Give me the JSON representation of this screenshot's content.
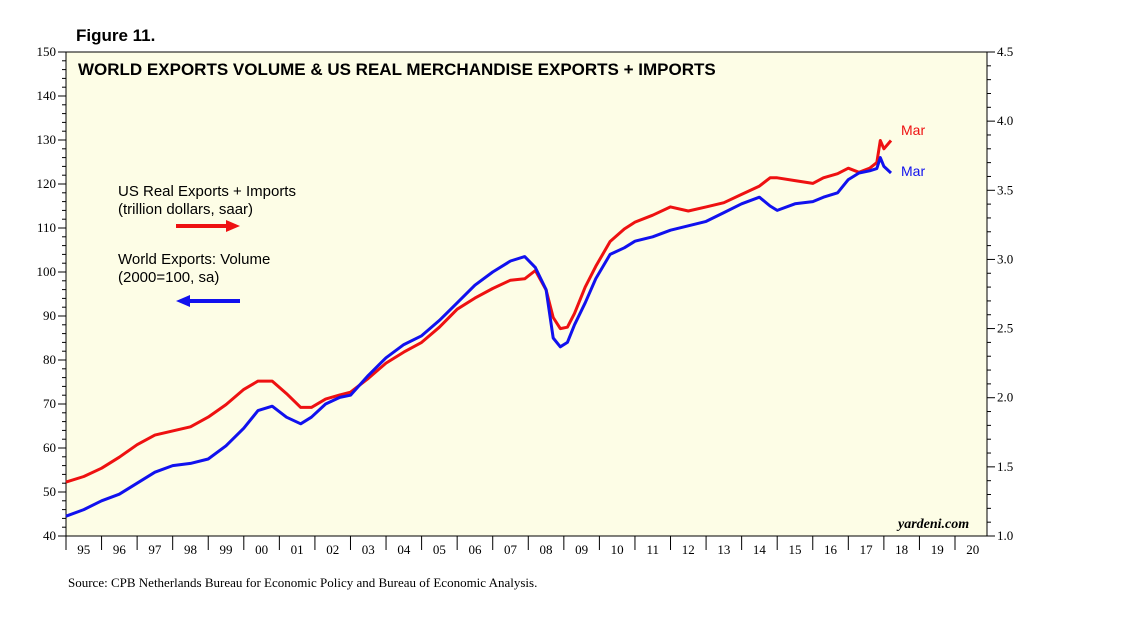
{
  "figure_label": "Figure 11.",
  "source": "Source: CPB Netherlands Bureau for Economic Policy and Bureau of Economic Analysis.",
  "brand": "yardeni.com",
  "colors": {
    "us": "#ee1111",
    "world": "#1111ee",
    "plot_bg": "#fdfde6"
  },
  "chart_data": {
    "type": "line",
    "title": "WORLD EXPORTS VOLUME & US REAL MERCHANDISE EXPORTS + IMPORTS",
    "xlim": [
      1995.0,
      2020.9
    ],
    "x_ticks": [
      "95",
      "96",
      "97",
      "98",
      "99",
      "00",
      "01",
      "02",
      "03",
      "04",
      "05",
      "06",
      "07",
      "08",
      "09",
      "10",
      "11",
      "12",
      "13",
      "14",
      "15",
      "16",
      "17",
      "18",
      "19",
      "20"
    ],
    "y_left": {
      "range": [
        40,
        150
      ],
      "ticks": [
        40,
        50,
        60,
        70,
        80,
        90,
        100,
        110,
        120,
        130,
        140,
        150
      ]
    },
    "y_right": {
      "range": [
        1.0,
        4.5
      ],
      "ticks": [
        "1.0",
        "1.5",
        "2.0",
        "2.5",
        "3.0",
        "3.5",
        "4.0",
        "4.5"
      ]
    },
    "series": [
      {
        "name": "US Real Exports + Imports",
        "legend_line1": "US Real Exports + Imports",
        "legend_line2": "(trillion dollars, saar)",
        "axis": "right",
        "end_label": "Mar",
        "x": [
          1995.0,
          1995.5,
          1996.0,
          1996.5,
          1997.0,
          1997.5,
          1998.0,
          1998.5,
          1999.0,
          1999.5,
          2000.0,
          2000.4,
          2000.8,
          2001.2,
          2001.6,
          2001.9,
          2002.3,
          2002.7,
          2003.0,
          2003.5,
          2004.0,
          2004.5,
          2005.0,
          2005.5,
          2006.0,
          2006.5,
          2007.0,
          2007.5,
          2007.9,
          2008.2,
          2008.5,
          2008.7,
          2008.9,
          2009.1,
          2009.3,
          2009.6,
          2009.9,
          2010.3,
          2010.7,
          2011.0,
          2011.5,
          2012.0,
          2012.5,
          2013.0,
          2013.5,
          2014.0,
          2014.5,
          2014.8,
          2015.0,
          2015.5,
          2016.0,
          2016.3,
          2016.7,
          2017.0,
          2017.3,
          2017.6,
          2017.8,
          2017.9,
          2018.0,
          2018.2
        ],
        "y": [
          1.39,
          1.43,
          1.49,
          1.57,
          1.66,
          1.73,
          1.76,
          1.79,
          1.86,
          1.95,
          2.06,
          2.12,
          2.12,
          2.03,
          1.93,
          1.93,
          1.99,
          2.02,
          2.04,
          2.14,
          2.25,
          2.33,
          2.4,
          2.51,
          2.64,
          2.72,
          2.79,
          2.85,
          2.86,
          2.92,
          2.78,
          2.58,
          2.5,
          2.51,
          2.61,
          2.8,
          2.95,
          3.13,
          3.22,
          3.27,
          3.32,
          3.38,
          3.35,
          3.38,
          3.41,
          3.47,
          3.53,
          3.59,
          3.59,
          3.57,
          3.55,
          3.59,
          3.62,
          3.66,
          3.63,
          3.66,
          3.7,
          3.86,
          3.8,
          3.86
        ]
      },
      {
        "name": "World Exports: Volume",
        "legend_line1": "World Exports: Volume",
        "legend_line2": "(2000=100, sa)",
        "axis": "left",
        "end_label": "Mar",
        "x": [
          1995.0,
          1995.5,
          1996.0,
          1996.5,
          1997.0,
          1997.5,
          1998.0,
          1998.5,
          1999.0,
          1999.5,
          2000.0,
          2000.4,
          2000.8,
          2001.2,
          2001.6,
          2001.9,
          2002.3,
          2002.7,
          2003.0,
          2003.5,
          2004.0,
          2004.5,
          2005.0,
          2005.5,
          2006.0,
          2006.5,
          2007.0,
          2007.5,
          2007.9,
          2008.2,
          2008.5,
          2008.7,
          2008.9,
          2009.1,
          2009.3,
          2009.6,
          2009.9,
          2010.3,
          2010.7,
          2011.0,
          2011.5,
          2012.0,
          2012.5,
          2013.0,
          2013.5,
          2014.0,
          2014.5,
          2014.8,
          2015.0,
          2015.5,
          2016.0,
          2016.3,
          2016.7,
          2017.0,
          2017.3,
          2017.6,
          2017.8,
          2017.9,
          2018.0,
          2018.2
        ],
        "y": [
          44.5,
          46,
          48,
          49.5,
          52,
          54.5,
          56,
          56.5,
          57.5,
          60.5,
          64.5,
          68.5,
          69.5,
          67,
          65.5,
          67,
          70,
          71.5,
          72,
          76.5,
          80.5,
          83.5,
          85.5,
          89,
          93,
          97,
          100,
          102.5,
          103.5,
          101,
          96,
          85,
          83,
          84,
          88,
          93,
          98.5,
          104,
          105.5,
          107,
          108,
          109.5,
          110.5,
          111.5,
          113.5,
          115.5,
          117,
          115,
          114,
          115.5,
          116,
          117,
          118,
          121,
          122.5,
          123,
          123.5,
          126,
          124,
          122.5
        ]
      }
    ]
  }
}
